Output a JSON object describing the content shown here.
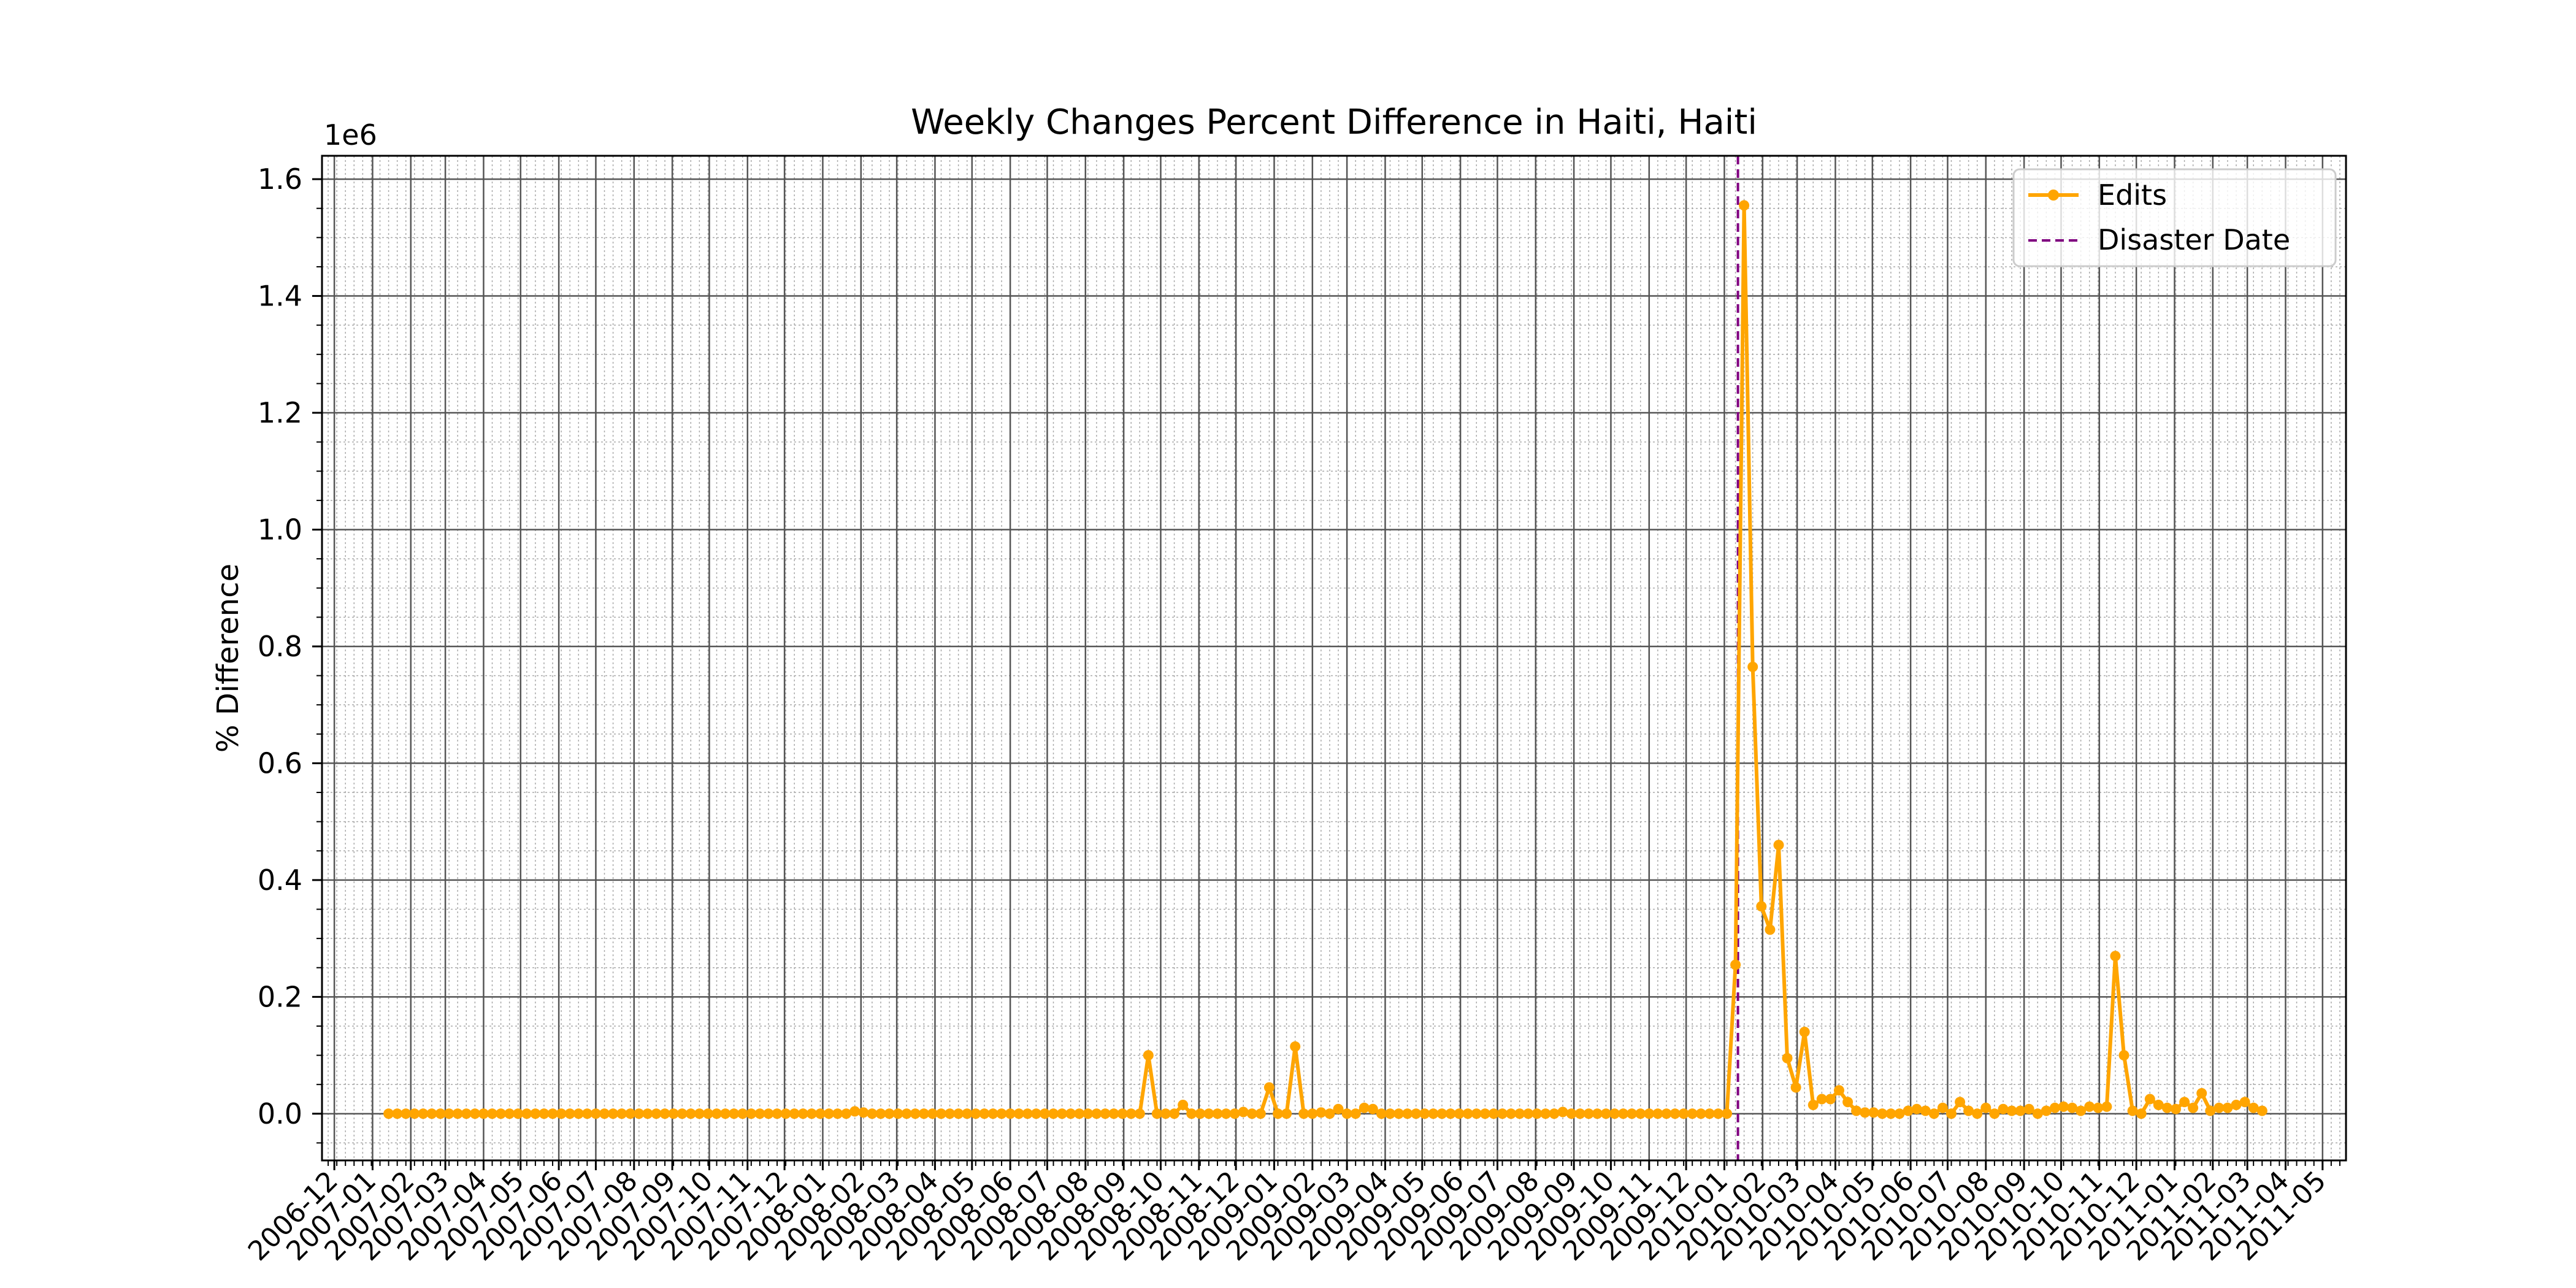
{
  "chart_data": {
    "type": "line",
    "title": "Weekly Changes Percent Difference in Haiti, Haiti",
    "xlabel": "",
    "ylabel": "% Difference",
    "y_offset_label": "1e6",
    "x_axis_type": "date",
    "xlim": [
      "2006-11-21",
      "2011-05-20"
    ],
    "ylim": [
      -0.08,
      1.64
    ],
    "y_ticks": [
      0.0,
      0.2,
      0.4,
      0.6,
      0.8,
      1.0,
      1.2,
      1.4,
      1.6
    ],
    "y_tick_labels": [
      "0.0",
      "0.2",
      "0.4",
      "0.6",
      "0.8",
      "1.0",
      "1.2",
      "1.4",
      "1.6"
    ],
    "x_tick_labels": [
      "2006-12",
      "2007-01",
      "2007-02",
      "2007-03",
      "2007-04",
      "2007-05",
      "2007-06",
      "2007-07",
      "2007-08",
      "2007-09",
      "2007-10",
      "2007-11",
      "2007-12",
      "2008-01",
      "2008-02",
      "2008-03",
      "2008-04",
      "2008-05",
      "2008-06",
      "2008-07",
      "2008-08",
      "2008-09",
      "2008-10",
      "2008-11",
      "2008-12",
      "2009-01",
      "2009-02",
      "2009-03",
      "2009-04",
      "2009-05",
      "2009-06",
      "2009-07",
      "2009-08",
      "2009-09",
      "2009-10",
      "2009-11",
      "2009-12",
      "2010-01",
      "2010-02",
      "2010-03",
      "2010-04",
      "2010-05",
      "2010-06",
      "2010-07",
      "2010-08",
      "2010-09",
      "2010-10",
      "2010-11",
      "2010-12",
      "2011-01",
      "2011-02",
      "2011-03",
      "2011-04",
      "2011-05"
    ],
    "grid": {
      "major": true,
      "minor": true
    },
    "legend_position": "top-right",
    "series": [
      {
        "name": "Edits",
        "color": "#FFA500",
        "marker": "circle",
        "points": [
          [
            "2007-01-14",
            0.0
          ],
          [
            "2007-01-21",
            0.0
          ],
          [
            "2007-01-28",
            0.0
          ],
          [
            "2007-02-04",
            0.0
          ],
          [
            "2007-02-11",
            0.0
          ],
          [
            "2007-02-18",
            0.0
          ],
          [
            "2007-02-25",
            0.0
          ],
          [
            "2007-03-04",
            0.0
          ],
          [
            "2007-03-11",
            0.0
          ],
          [
            "2007-03-18",
            0.0
          ],
          [
            "2007-03-25",
            0.0
          ],
          [
            "2007-04-01",
            0.0
          ],
          [
            "2007-04-08",
            0.0
          ],
          [
            "2007-04-15",
            0.0
          ],
          [
            "2007-04-22",
            0.0
          ],
          [
            "2007-04-29",
            0.0
          ],
          [
            "2007-05-06",
            0.0
          ],
          [
            "2007-05-13",
            0.0
          ],
          [
            "2007-05-20",
            0.0
          ],
          [
            "2007-05-27",
            0.0
          ],
          [
            "2007-06-03",
            0.0
          ],
          [
            "2007-06-10",
            0.0
          ],
          [
            "2007-06-17",
            0.0
          ],
          [
            "2007-06-24",
            0.0
          ],
          [
            "2007-07-01",
            0.0
          ],
          [
            "2007-07-08",
            0.0
          ],
          [
            "2007-07-15",
            0.0
          ],
          [
            "2007-07-22",
            0.0
          ],
          [
            "2007-07-29",
            0.0
          ],
          [
            "2007-08-05",
            0.0
          ],
          [
            "2007-08-12",
            0.0
          ],
          [
            "2007-08-19",
            0.0
          ],
          [
            "2007-08-26",
            0.0
          ],
          [
            "2007-09-02",
            0.0
          ],
          [
            "2007-09-09",
            0.0
          ],
          [
            "2007-09-16",
            0.0
          ],
          [
            "2007-09-23",
            0.0
          ],
          [
            "2007-09-30",
            0.0
          ],
          [
            "2007-10-07",
            0.0
          ],
          [
            "2007-10-14",
            0.0
          ],
          [
            "2007-10-21",
            0.0
          ],
          [
            "2007-10-28",
            0.0
          ],
          [
            "2007-11-04",
            0.0
          ],
          [
            "2007-11-11",
            0.0
          ],
          [
            "2007-11-18",
            0.0
          ],
          [
            "2007-11-25",
            0.0
          ],
          [
            "2007-12-02",
            0.0
          ],
          [
            "2007-12-09",
            0.0
          ],
          [
            "2007-12-16",
            0.0
          ],
          [
            "2007-12-23",
            0.0
          ],
          [
            "2007-12-30",
            0.0
          ],
          [
            "2008-01-06",
            0.0
          ],
          [
            "2008-01-13",
            0.0
          ],
          [
            "2008-01-20",
            0.0
          ],
          [
            "2008-01-27",
            0.004
          ],
          [
            "2008-02-03",
            0.002
          ],
          [
            "2008-02-10",
            0.0
          ],
          [
            "2008-02-17",
            0.0
          ],
          [
            "2008-02-24",
            0.0
          ],
          [
            "2008-03-02",
            0.0
          ],
          [
            "2008-03-09",
            0.0
          ],
          [
            "2008-03-16",
            0.0
          ],
          [
            "2008-03-23",
            0.0
          ],
          [
            "2008-03-30",
            0.0
          ],
          [
            "2008-04-06",
            0.0
          ],
          [
            "2008-04-13",
            0.0
          ],
          [
            "2008-04-20",
            0.0
          ],
          [
            "2008-04-27",
            0.0
          ],
          [
            "2008-05-04",
            0.0
          ],
          [
            "2008-05-11",
            0.0
          ],
          [
            "2008-05-18",
            0.0
          ],
          [
            "2008-05-25",
            0.0
          ],
          [
            "2008-06-01",
            0.0
          ],
          [
            "2008-06-08",
            0.0
          ],
          [
            "2008-06-15",
            0.0
          ],
          [
            "2008-06-22",
            0.0
          ],
          [
            "2008-06-29",
            0.0
          ],
          [
            "2008-07-06",
            0.0
          ],
          [
            "2008-07-13",
            0.0
          ],
          [
            "2008-07-20",
            0.0
          ],
          [
            "2008-07-27",
            0.0
          ],
          [
            "2008-08-03",
            0.0
          ],
          [
            "2008-08-10",
            0.0
          ],
          [
            "2008-08-17",
            0.0
          ],
          [
            "2008-08-24",
            0.0
          ],
          [
            "2008-08-31",
            0.0
          ],
          [
            "2008-09-07",
            0.0
          ],
          [
            "2008-09-14",
            0.0
          ],
          [
            "2008-09-21",
            0.1
          ],
          [
            "2008-09-28",
            0.0
          ],
          [
            "2008-10-05",
            0.0
          ],
          [
            "2008-10-12",
            0.0
          ],
          [
            "2008-10-19",
            0.015
          ],
          [
            "2008-10-26",
            0.0
          ],
          [
            "2008-11-02",
            0.0
          ],
          [
            "2008-11-09",
            0.0
          ],
          [
            "2008-11-16",
            0.0
          ],
          [
            "2008-11-23",
            0.0
          ],
          [
            "2008-11-30",
            0.0
          ],
          [
            "2008-12-07",
            0.003
          ],
          [
            "2008-12-14",
            0.0
          ],
          [
            "2008-12-21",
            0.0
          ],
          [
            "2008-12-28",
            0.045
          ],
          [
            "2009-01-04",
            0.0
          ],
          [
            "2009-01-11",
            0.0
          ],
          [
            "2009-01-18",
            0.115
          ],
          [
            "2009-01-25",
            0.0
          ],
          [
            "2009-02-01",
            0.0
          ],
          [
            "2009-02-08",
            0.002
          ],
          [
            "2009-02-15",
            0.0
          ],
          [
            "2009-02-22",
            0.008
          ],
          [
            "2009-03-01",
            0.0
          ],
          [
            "2009-03-08",
            0.0
          ],
          [
            "2009-03-15",
            0.01
          ],
          [
            "2009-03-22",
            0.008
          ],
          [
            "2009-03-29",
            0.0
          ],
          [
            "2009-04-05",
            0.0
          ],
          [
            "2009-04-12",
            0.0
          ],
          [
            "2009-04-19",
            0.0
          ],
          [
            "2009-04-26",
            0.0
          ],
          [
            "2009-05-03",
            0.0
          ],
          [
            "2009-05-10",
            0.0
          ],
          [
            "2009-05-17",
            0.0
          ],
          [
            "2009-05-24",
            0.0
          ],
          [
            "2009-05-31",
            0.0
          ],
          [
            "2009-06-07",
            0.0
          ],
          [
            "2009-06-14",
            0.0
          ],
          [
            "2009-06-21",
            0.0
          ],
          [
            "2009-06-28",
            0.0
          ],
          [
            "2009-07-05",
            0.0
          ],
          [
            "2009-07-12",
            0.0
          ],
          [
            "2009-07-19",
            0.0
          ],
          [
            "2009-07-26",
            0.0
          ],
          [
            "2009-08-02",
            0.0
          ],
          [
            "2009-08-09",
            0.0
          ],
          [
            "2009-08-16",
            0.0
          ],
          [
            "2009-08-23",
            0.003
          ],
          [
            "2009-08-30",
            0.0
          ],
          [
            "2009-09-06",
            0.0
          ],
          [
            "2009-09-13",
            0.0
          ],
          [
            "2009-09-20",
            0.0
          ],
          [
            "2009-09-27",
            0.0
          ],
          [
            "2009-10-04",
            0.0
          ],
          [
            "2009-10-11",
            0.0
          ],
          [
            "2009-10-18",
            0.0
          ],
          [
            "2009-10-25",
            0.0
          ],
          [
            "2009-11-01",
            0.0
          ],
          [
            "2009-11-08",
            0.0
          ],
          [
            "2009-11-15",
            0.0
          ],
          [
            "2009-11-22",
            0.0
          ],
          [
            "2009-11-29",
            0.0
          ],
          [
            "2009-12-06",
            0.0
          ],
          [
            "2009-12-13",
            0.0
          ],
          [
            "2009-12-20",
            0.0
          ],
          [
            "2009-12-27",
            0.0
          ],
          [
            "2010-01-03",
            0.0
          ],
          [
            "2010-01-10",
            0.255
          ],
          [
            "2010-01-17",
            1.555
          ],
          [
            "2010-01-24",
            0.765
          ],
          [
            "2010-01-31",
            0.355
          ],
          [
            "2010-02-07",
            0.315
          ],
          [
            "2010-02-14",
            0.46
          ],
          [
            "2010-02-21",
            0.095
          ],
          [
            "2010-02-28",
            0.045
          ],
          [
            "2010-03-07",
            0.14
          ],
          [
            "2010-03-14",
            0.015
          ],
          [
            "2010-03-21",
            0.025
          ],
          [
            "2010-03-28",
            0.025
          ],
          [
            "2010-04-04",
            0.04
          ],
          [
            "2010-04-11",
            0.02
          ],
          [
            "2010-04-18",
            0.005
          ],
          [
            "2010-04-25",
            0.002
          ],
          [
            "2010-05-02",
            0.002
          ],
          [
            "2010-05-09",
            0.0
          ],
          [
            "2010-05-16",
            0.0
          ],
          [
            "2010-05-23",
            0.0
          ],
          [
            "2010-05-30",
            0.005
          ],
          [
            "2010-06-06",
            0.008
          ],
          [
            "2010-06-13",
            0.005
          ],
          [
            "2010-06-20",
            0.0
          ],
          [
            "2010-06-27",
            0.01
          ],
          [
            "2010-07-04",
            0.0
          ],
          [
            "2010-07-11",
            0.02
          ],
          [
            "2010-07-18",
            0.005
          ],
          [
            "2010-07-25",
            0.0
          ],
          [
            "2010-08-01",
            0.01
          ],
          [
            "2010-08-08",
            0.0
          ],
          [
            "2010-08-15",
            0.008
          ],
          [
            "2010-08-22",
            0.005
          ],
          [
            "2010-08-29",
            0.005
          ],
          [
            "2010-09-05",
            0.008
          ],
          [
            "2010-09-12",
            0.0
          ],
          [
            "2010-09-19",
            0.005
          ],
          [
            "2010-09-26",
            0.01
          ],
          [
            "2010-10-03",
            0.012
          ],
          [
            "2010-10-10",
            0.01
          ],
          [
            "2010-10-17",
            0.005
          ],
          [
            "2010-10-24",
            0.012
          ],
          [
            "2010-10-31",
            0.01
          ],
          [
            "2010-11-07",
            0.012
          ],
          [
            "2010-11-14",
            0.27
          ],
          [
            "2010-11-21",
            0.1
          ],
          [
            "2010-11-28",
            0.005
          ],
          [
            "2010-12-05",
            0.0
          ],
          [
            "2010-12-12",
            0.025
          ],
          [
            "2010-12-19",
            0.015
          ],
          [
            "2010-12-26",
            0.01
          ],
          [
            "2011-01-02",
            0.008
          ],
          [
            "2011-01-09",
            0.02
          ],
          [
            "2011-01-16",
            0.01
          ],
          [
            "2011-01-23",
            0.035
          ],
          [
            "2011-01-30",
            0.005
          ],
          [
            "2011-02-06",
            0.01
          ],
          [
            "2011-02-13",
            0.01
          ],
          [
            "2011-02-20",
            0.015
          ],
          [
            "2011-02-27",
            0.02
          ],
          [
            "2011-03-06",
            0.01
          ],
          [
            "2011-03-13",
            0.005
          ]
        ]
      }
    ],
    "vlines": [
      {
        "name": "Disaster Date",
        "x": "2010-01-12",
        "color": "#800080",
        "style": "dashed"
      }
    ]
  }
}
